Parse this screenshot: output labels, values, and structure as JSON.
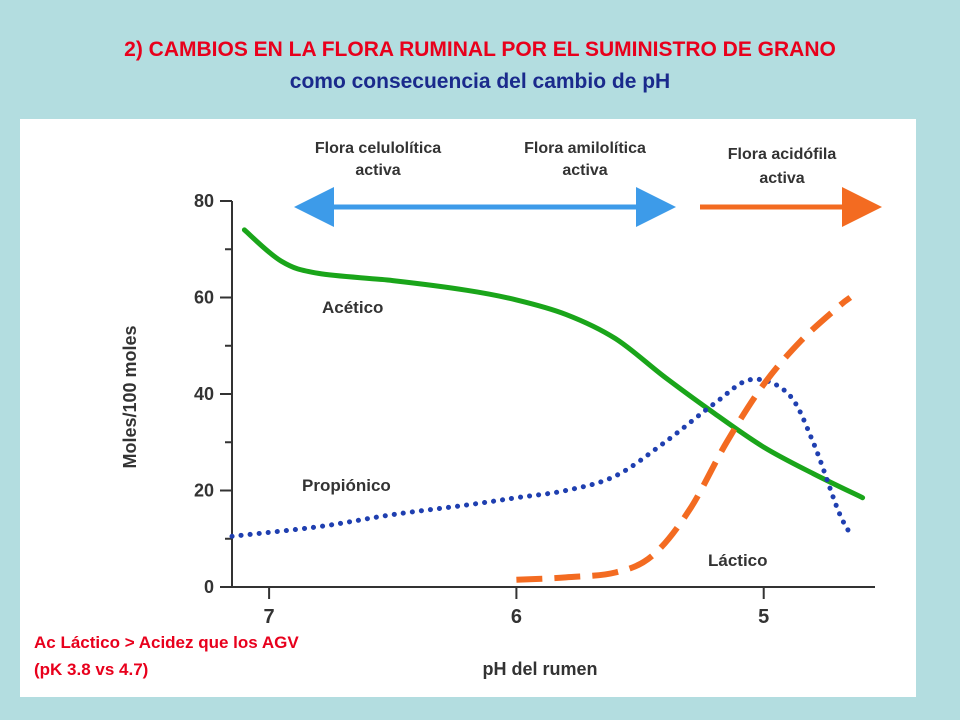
{
  "slide": {
    "title": "2) CAMBIOS EN LA FLORA RUMINAL POR EL SUMINISTRO DE GRANO",
    "subtitle": "como consecuencia del cambio de pH",
    "note_line1": "Ac Láctico > Acidez que los AGV",
    "note_line2": "(pK 3.8 vs 4.7)"
  },
  "chart_data": {
    "type": "line",
    "xlabel": "pH del rumen",
    "ylabel": "Moles/100 moles",
    "xlim": [
      7.15,
      4.55
    ],
    "ylim": [
      0,
      80
    ],
    "x_ticks": [
      7,
      6,
      5
    ],
    "y_ticks": [
      0,
      20,
      40,
      60,
      80
    ],
    "grid": false,
    "series": [
      {
        "name": "Acético",
        "color": "#1aa51a",
        "style": "solid",
        "points": [
          [
            7.1,
            74
          ],
          [
            6.95,
            67.5
          ],
          [
            6.8,
            65
          ],
          [
            6.5,
            63.5
          ],
          [
            6.2,
            61.5
          ],
          [
            6.0,
            59.5
          ],
          [
            5.8,
            56.5
          ],
          [
            5.6,
            51.5
          ],
          [
            5.4,
            43.5
          ],
          [
            5.2,
            36
          ],
          [
            5.0,
            29
          ],
          [
            4.8,
            23.5
          ],
          [
            4.6,
            18.5
          ]
        ]
      },
      {
        "name": "Propiónico",
        "color": "#1f3fb0",
        "style": "dotted",
        "points": [
          [
            7.15,
            10.5
          ],
          [
            6.8,
            12.5
          ],
          [
            6.5,
            15
          ],
          [
            6.2,
            17
          ],
          [
            6.0,
            18.5
          ],
          [
            5.8,
            20
          ],
          [
            5.6,
            23
          ],
          [
            5.4,
            30
          ],
          [
            5.2,
            38
          ],
          [
            5.05,
            43
          ],
          [
            4.9,
            40
          ],
          [
            4.8,
            30
          ],
          [
            4.7,
            16
          ],
          [
            4.65,
            11
          ]
        ]
      },
      {
        "name": "Láctico",
        "color": "#f36b21",
        "style": "dashed",
        "points": [
          [
            6.0,
            1.5
          ],
          [
            5.8,
            2
          ],
          [
            5.6,
            3
          ],
          [
            5.45,
            6.5
          ],
          [
            5.3,
            16
          ],
          [
            5.15,
            30
          ],
          [
            5.0,
            42
          ],
          [
            4.85,
            51
          ],
          [
            4.7,
            58
          ],
          [
            4.65,
            60
          ]
        ]
      }
    ],
    "annotations": [
      {
        "text_line1": "Flora celulolítica",
        "text_line2": "activa",
        "color": "#3d9be9"
      },
      {
        "text_line1": "Flora amilolítica",
        "text_line2": "activa",
        "color": "#3d9be9"
      },
      {
        "text_line1": "Flora acidófila",
        "text_line2": "activa",
        "color": "#f36b21"
      }
    ]
  }
}
